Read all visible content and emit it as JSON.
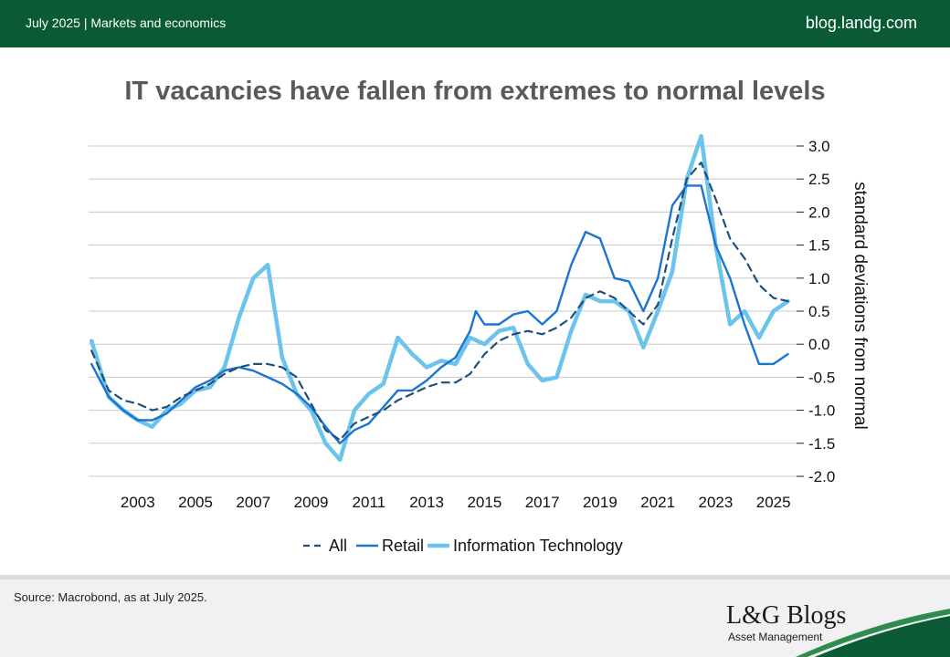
{
  "header": {
    "left_text": "July 2025 | Markets and economics",
    "right_text": "blog.landg.com"
  },
  "footer": {
    "source": "Source: Macrobond, as at July 2025.",
    "logo_text": "L&G Blogs",
    "logo_subtext": "Asset Management"
  },
  "colors": {
    "header_bg": "#0b5a36",
    "all": "#1f4f7a",
    "retail": "#1b75cf",
    "it": "#6cc3ec"
  },
  "chart_data": {
    "type": "line",
    "title": "IT vacancies have fallen from extremes to normal levels",
    "ylabel": "standard deviations from normal",
    "xlabel": "",
    "xlim": [
      2001.3,
      2025.8
    ],
    "ylim": [
      -2.0,
      3.0
    ],
    "yticks": [
      "3.0",
      "2.5",
      "2.0",
      "1.5",
      "1.0",
      "0.5",
      "0.0",
      "-0.5",
      "-1.0",
      "-1.5",
      "-2.0"
    ],
    "xticks": [
      "2003",
      "2005",
      "2007",
      "2009",
      "2011",
      "2013",
      "2015",
      "2017",
      "2019",
      "2021",
      "2023",
      "2025"
    ],
    "grid": true,
    "y_axis_position": "right",
    "legend_position": "bottom",
    "series": [
      {
        "name": "All",
        "style": "dashed",
        "points": [
          [
            2001.4,
            -0.1
          ],
          [
            2002.0,
            -0.7
          ],
          [
            2002.5,
            -0.85
          ],
          [
            2003.0,
            -0.9
          ],
          [
            2003.5,
            -1.0
          ],
          [
            2004.0,
            -0.95
          ],
          [
            2004.5,
            -0.8
          ],
          [
            2005.0,
            -0.7
          ],
          [
            2005.5,
            -0.6
          ],
          [
            2006.0,
            -0.45
          ],
          [
            2006.5,
            -0.35
          ],
          [
            2007.0,
            -0.3
          ],
          [
            2007.5,
            -0.3
          ],
          [
            2008.0,
            -0.35
          ],
          [
            2008.5,
            -0.5
          ],
          [
            2009.0,
            -0.9
          ],
          [
            2009.5,
            -1.3
          ],
          [
            2010.0,
            -1.45
          ],
          [
            2010.5,
            -1.2
          ],
          [
            2011.0,
            -1.1
          ],
          [
            2011.5,
            -1.0
          ],
          [
            2012.0,
            -0.85
          ],
          [
            2012.5,
            -0.75
          ],
          [
            2013.0,
            -0.65
          ],
          [
            2013.5,
            -0.58
          ],
          [
            2014.0,
            -0.58
          ],
          [
            2014.5,
            -0.45
          ],
          [
            2015.0,
            -0.15
          ],
          [
            2015.5,
            0.05
          ],
          [
            2016.0,
            0.15
          ],
          [
            2016.5,
            0.2
          ],
          [
            2017.0,
            0.15
          ],
          [
            2017.5,
            0.25
          ],
          [
            2018.0,
            0.4
          ],
          [
            2018.5,
            0.7
          ],
          [
            2019.0,
            0.8
          ],
          [
            2019.5,
            0.7
          ],
          [
            2020.0,
            0.5
          ],
          [
            2020.5,
            0.3
          ],
          [
            2021.0,
            0.6
          ],
          [
            2021.5,
            1.6
          ],
          [
            2022.0,
            2.5
          ],
          [
            2022.5,
            2.75
          ],
          [
            2023.0,
            2.2
          ],
          [
            2023.5,
            1.6
          ],
          [
            2024.0,
            1.3
          ],
          [
            2024.5,
            0.9
          ],
          [
            2025.0,
            0.7
          ],
          [
            2025.5,
            0.65
          ]
        ]
      },
      {
        "name": "Retail",
        "style": "solid",
        "points": [
          [
            2001.4,
            -0.3
          ],
          [
            2002.0,
            -0.8
          ],
          [
            2002.5,
            -1.0
          ],
          [
            2003.0,
            -1.15
          ],
          [
            2003.5,
            -1.15
          ],
          [
            2004.0,
            -1.05
          ],
          [
            2004.5,
            -0.85
          ],
          [
            2005.0,
            -0.65
          ],
          [
            2005.5,
            -0.55
          ],
          [
            2006.0,
            -0.4
          ],
          [
            2006.5,
            -0.35
          ],
          [
            2007.0,
            -0.4
          ],
          [
            2007.5,
            -0.5
          ],
          [
            2008.0,
            -0.6
          ],
          [
            2008.5,
            -0.75
          ],
          [
            2009.0,
            -0.95
          ],
          [
            2009.5,
            -1.25
          ],
          [
            2010.0,
            -1.5
          ],
          [
            2010.5,
            -1.3
          ],
          [
            2011.0,
            -1.2
          ],
          [
            2011.5,
            -0.95
          ],
          [
            2012.0,
            -0.7
          ],
          [
            2012.5,
            -0.7
          ],
          [
            2013.0,
            -0.55
          ],
          [
            2013.5,
            -0.35
          ],
          [
            2014.0,
            -0.2
          ],
          [
            2014.5,
            0.2
          ],
          [
            2014.7,
            0.5
          ],
          [
            2015.0,
            0.3
          ],
          [
            2015.5,
            0.3
          ],
          [
            2016.0,
            0.45
          ],
          [
            2016.5,
            0.5
          ],
          [
            2017.0,
            0.3
          ],
          [
            2017.5,
            0.5
          ],
          [
            2018.0,
            1.2
          ],
          [
            2018.5,
            1.7
          ],
          [
            2019.0,
            1.6
          ],
          [
            2019.5,
            1.0
          ],
          [
            2020.0,
            0.95
          ],
          [
            2020.5,
            0.5
          ],
          [
            2021.0,
            1.0
          ],
          [
            2021.5,
            2.1
          ],
          [
            2022.0,
            2.4
          ],
          [
            2022.5,
            2.4
          ],
          [
            2023.0,
            1.5
          ],
          [
            2023.5,
            1.0
          ],
          [
            2024.0,
            0.3
          ],
          [
            2024.5,
            -0.3
          ],
          [
            2025.0,
            -0.3
          ],
          [
            2025.5,
            -0.15
          ]
        ]
      },
      {
        "name": "Information Technology",
        "style": "solid-thick",
        "points": [
          [
            2001.4,
            0.05
          ],
          [
            2002.0,
            -0.8
          ],
          [
            2002.5,
            -1.0
          ],
          [
            2003.0,
            -1.15
          ],
          [
            2003.5,
            -1.25
          ],
          [
            2004.0,
            -1.0
          ],
          [
            2004.5,
            -0.9
          ],
          [
            2005.0,
            -0.7
          ],
          [
            2005.5,
            -0.65
          ],
          [
            2006.0,
            -0.35
          ],
          [
            2006.5,
            0.4
          ],
          [
            2007.0,
            1.0
          ],
          [
            2007.5,
            1.2
          ],
          [
            2008.0,
            -0.2
          ],
          [
            2008.5,
            -0.75
          ],
          [
            2009.0,
            -1.0
          ],
          [
            2009.5,
            -1.5
          ],
          [
            2010.0,
            -1.75
          ],
          [
            2010.5,
            -1.0
          ],
          [
            2011.0,
            -0.75
          ],
          [
            2011.5,
            -0.6
          ],
          [
            2012.0,
            0.1
          ],
          [
            2012.5,
            -0.15
          ],
          [
            2013.0,
            -0.35
          ],
          [
            2013.5,
            -0.25
          ],
          [
            2014.0,
            -0.3
          ],
          [
            2014.5,
            0.1
          ],
          [
            2015.0,
            0.0
          ],
          [
            2015.5,
            0.2
          ],
          [
            2016.0,
            0.25
          ],
          [
            2016.5,
            -0.3
          ],
          [
            2017.0,
            -0.55
          ],
          [
            2017.5,
            -0.5
          ],
          [
            2018.0,
            0.2
          ],
          [
            2018.5,
            0.75
          ],
          [
            2019.0,
            0.65
          ],
          [
            2019.5,
            0.65
          ],
          [
            2020.0,
            0.5
          ],
          [
            2020.5,
            -0.05
          ],
          [
            2021.0,
            0.5
          ],
          [
            2021.5,
            1.1
          ],
          [
            2022.0,
            2.5
          ],
          [
            2022.5,
            3.15
          ],
          [
            2023.0,
            1.5
          ],
          [
            2023.5,
            0.3
          ],
          [
            2024.0,
            0.5
          ],
          [
            2024.5,
            0.1
          ],
          [
            2025.0,
            0.5
          ],
          [
            2025.5,
            0.65
          ]
        ]
      }
    ]
  }
}
